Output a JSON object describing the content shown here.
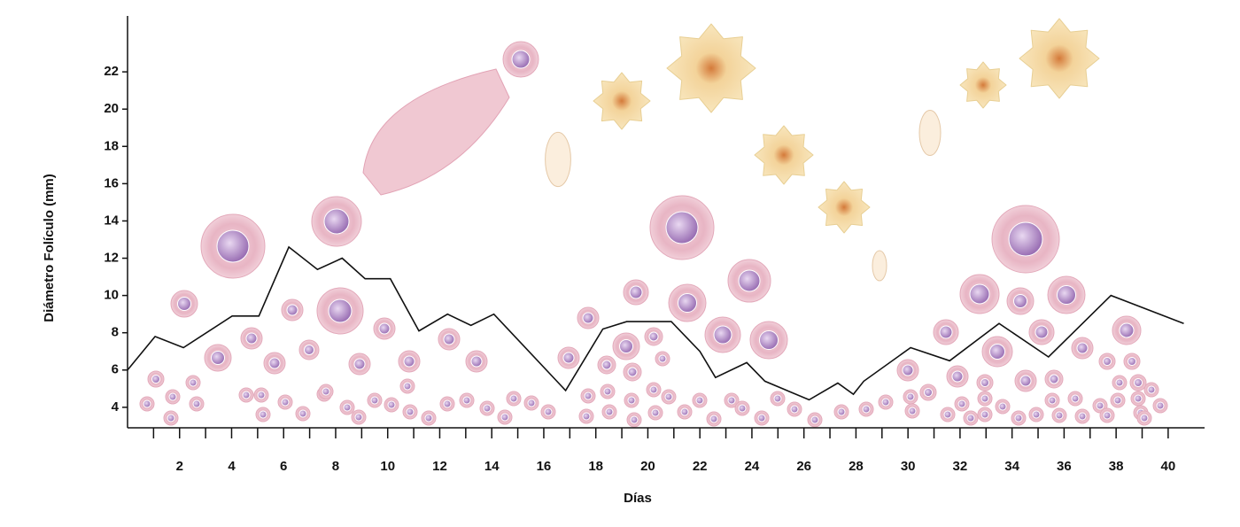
{
  "chart_data": {
    "type": "line",
    "x_label": "Días",
    "y_label": "Diámetro Folículo (mm)",
    "xlim": [
      0,
      41.4
    ],
    "ylim": [
      2.9,
      25
    ],
    "xticks": [
      2,
      4,
      6,
      8,
      10,
      12,
      14,
      16,
      18,
      20,
      22,
      24,
      26,
      28,
      30,
      32,
      34,
      36,
      38,
      40
    ],
    "yticks": [
      4,
      6,
      8,
      10,
      12,
      14,
      16,
      18,
      20,
      22
    ],
    "color": "#111111",
    "x": [
      0,
      1.06,
      2.15,
      4.02,
      5.05,
      6.2,
      7.3,
      8.25,
      9.13,
      10.1,
      11.2,
      12.3,
      13.2,
      14.08,
      16.84,
      18.27,
      19.19,
      20.9,
      22.0,
      22.6,
      23.8,
      24.5,
      26.2,
      27.3,
      27.9,
      28.3,
      30.1,
      31.6,
      33.5,
      35.4,
      37.8,
      40.6
    ],
    "values": [
      6.0,
      7.8,
      7.2,
      8.9,
      8.9,
      12.6,
      11.4,
      12.0,
      10.9,
      10.9,
      8.1,
      9.0,
      8.4,
      9.0,
      4.9,
      8.2,
      8.6,
      8.6,
      7.0,
      5.6,
      6.4,
      5.4,
      4.4,
      5.3,
      4.7,
      5.4,
      7.2,
      6.5,
      8.5,
      6.7,
      10.0,
      8.5
    ]
  }
}
